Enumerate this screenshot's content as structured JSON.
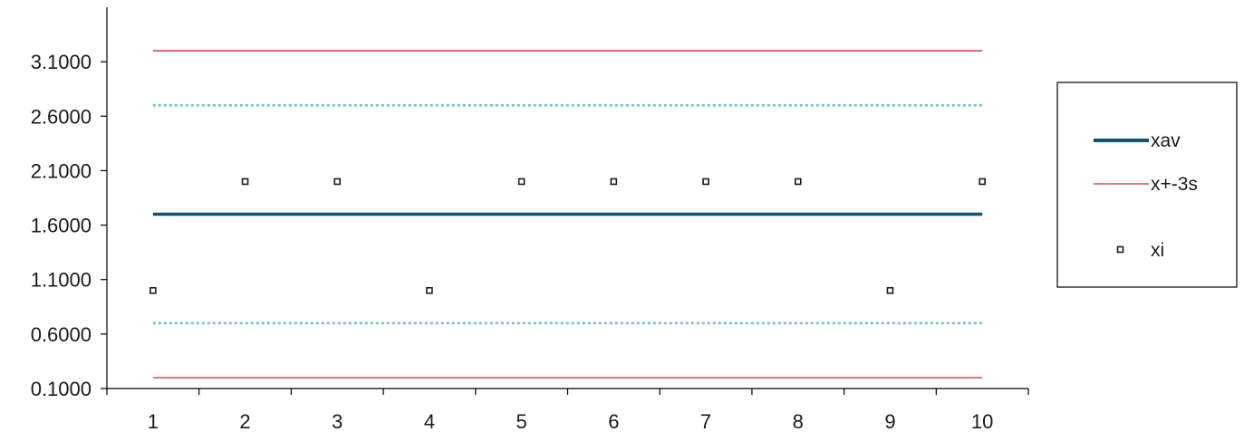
{
  "chart_data": {
    "type": "line",
    "title": "",
    "xlabel": "",
    "ylabel": "",
    "x": [
      1,
      2,
      3,
      4,
      5,
      6,
      7,
      8,
      9,
      10
    ],
    "xlim": [
      0.5,
      10.5
    ],
    "ylim": [
      0.1,
      3.6
    ],
    "y_ticks": [
      0.1,
      0.6,
      1.1,
      1.6,
      2.1,
      2.6,
      3.1
    ],
    "y_tick_labels": [
      "0.1000",
      "0.6000",
      "1.1000",
      "1.6000",
      "2.1000",
      "2.6000",
      "3.1000"
    ],
    "x_tick_labels": [
      "1",
      "2",
      "3",
      "4",
      "5",
      "6",
      "7",
      "8",
      "9",
      "10"
    ],
    "grid": false,
    "legend_position": "right",
    "series": [
      {
        "name": "xav",
        "style": "line",
        "color": "#0c5480",
        "values": [
          1.7,
          1.7,
          1.7,
          1.7,
          1.7,
          1.7,
          1.7,
          1.7,
          1.7,
          1.7
        ]
      },
      {
        "name": "x+-3s",
        "style": "line",
        "color": "#d94a5f",
        "values": [
          3.2,
          3.2,
          3.2,
          3.2,
          3.2,
          3.2,
          3.2,
          3.2,
          3.2,
          3.2
        ]
      },
      {
        "name": "",
        "style": "line",
        "color": "#d94a5f",
        "values": [
          0.2,
          0.2,
          0.2,
          0.2,
          0.2,
          0.2,
          0.2,
          0.2,
          0.2,
          0.2
        ]
      },
      {
        "name": "",
        "style": "dotted",
        "color": "#6cc4cf",
        "values": [
          2.7,
          2.7,
          2.7,
          2.7,
          2.7,
          2.7,
          2.7,
          2.7,
          2.7,
          2.7
        ]
      },
      {
        "name": "",
        "style": "dotted",
        "color": "#6cc4cf",
        "values": [
          0.7,
          0.7,
          0.7,
          0.7,
          0.7,
          0.7,
          0.7,
          0.7,
          0.7,
          0.7
        ]
      },
      {
        "name": "xi",
        "style": "marker",
        "color": "#1a1a1a",
        "values": [
          1,
          2,
          2,
          1,
          2,
          2,
          2,
          2,
          1,
          2
        ]
      }
    ]
  }
}
